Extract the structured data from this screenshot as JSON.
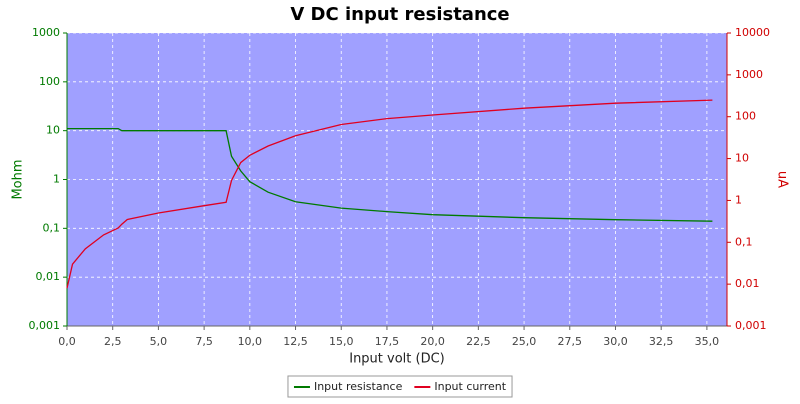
{
  "chart_data": {
    "type": "line",
    "title": "V DC input resistance",
    "xlabel": "Input volt (DC)",
    "ylabel": "Mohm",
    "y2label": "uA",
    "x": [
      0,
      0.3,
      1,
      2,
      2.8,
      3,
      3.3,
      5,
      7.5,
      8.7,
      9,
      9.5,
      10,
      11,
      12.5,
      15,
      17.5,
      20,
      25,
      30,
      35.3
    ],
    "series": [
      {
        "name": "Input resistance",
        "color": "#007a00",
        "axis": "y",
        "values": [
          11,
          11,
          11,
          11,
          11,
          10,
          10,
          10,
          10,
          10,
          3,
          1.5,
          0.9,
          0.55,
          0.35,
          0.26,
          0.22,
          0.19,
          0.165,
          0.15,
          0.14
        ]
      },
      {
        "name": "Input current",
        "color": "#e00020",
        "axis": "y2",
        "values": [
          0.008,
          0.03,
          0.07,
          0.15,
          0.22,
          0.27,
          0.35,
          0.5,
          0.75,
          0.9,
          3,
          8,
          12,
          20,
          35,
          65,
          90,
          110,
          160,
          210,
          250
        ]
      }
    ],
    "xlim": [
      0,
      36.1
    ],
    "xticks": [
      {
        "value": 0,
        "label": "0,0"
      },
      {
        "value": 2.5,
        "label": "2,5"
      },
      {
        "value": 5,
        "label": "5,0"
      },
      {
        "value": 7.5,
        "label": "7,5"
      },
      {
        "value": 10,
        "label": "10,0"
      },
      {
        "value": 12.5,
        "label": "12,5"
      },
      {
        "value": 15,
        "label": "15,0"
      },
      {
        "value": 17.5,
        "label": "17,5"
      },
      {
        "value": 20,
        "label": "20,0"
      },
      {
        "value": 22.5,
        "label": "22,5"
      },
      {
        "value": 25,
        "label": "25,0"
      },
      {
        "value": 27.5,
        "label": "27,5"
      },
      {
        "value": 30,
        "label": "30,0"
      },
      {
        "value": 32.5,
        "label": "32,5"
      },
      {
        "value": 35,
        "label": "35,0"
      }
    ],
    "ylim": [
      0.001,
      1000
    ],
    "yticks": [
      {
        "value": 0.001,
        "label": "0,001"
      },
      {
        "value": 0.01,
        "label": "0,01"
      },
      {
        "value": 0.1,
        "label": "0,1"
      },
      1,
      10,
      100,
      1000
    ],
    "y2lim": [
      0.001,
      10000
    ],
    "y2ticks": [
      {
        "value": 0.001,
        "label": "0,001"
      },
      {
        "value": 0.01,
        "label": "0,01"
      },
      {
        "value": 0.1,
        "label": "0,1"
      },
      1,
      10,
      100,
      1000,
      10000
    ],
    "ylog": true,
    "y2log": true,
    "grid": true,
    "legend": "bottom",
    "plot_background": "#a0a0ff",
    "ycolor": "#007a00",
    "y2color": "#d00000"
  }
}
